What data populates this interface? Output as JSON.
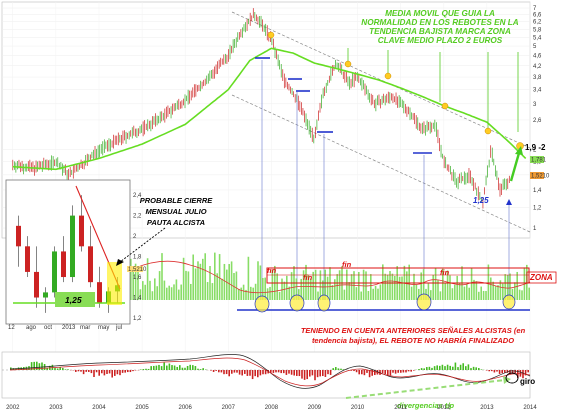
{
  "chart_data": {
    "type": "line",
    "x_axis": {
      "ticks": [
        "2002",
        "2003",
        "2004",
        "2005",
        "2006",
        "2007",
        "2008",
        "2009",
        "2010",
        "2011",
        "2012",
        "2013",
        "2014"
      ]
    },
    "y_axis": {
      "scale": "log",
      "ticks": [
        "7",
        "6,6",
        "6,2",
        "5,8",
        "5,4",
        "5",
        "4,6",
        "4,2",
        "3,8",
        "3,4",
        "3",
        "2,6",
        "2",
        "1,8",
        "1,6",
        "1,4",
        "1,2",
        "1"
      ],
      "range": [
        1,
        7
      ]
    },
    "price_tags": {
      "top": "1,781",
      "bottom": "1,5210"
    },
    "series": [
      {
        "kind": "price",
        "x": [
          2002.0,
          2002.5,
          2003.0,
          2003.3,
          2003.6,
          2004.0,
          2004.5,
          2005.0,
          2005.5,
          2006.0,
          2006.5,
          2007.0,
          2007.3,
          2007.6,
          2007.8,
          2008.0,
          2008.3,
          2008.6,
          2009.0,
          2009.2,
          2009.5,
          2009.8,
          2010.0,
          2010.4,
          2010.8,
          2011.2,
          2011.5,
          2011.8,
          2012.0,
          2012.3,
          2012.6,
          2012.9,
          2013.1,
          2013.3,
          2013.5
        ],
        "y": [
          1.75,
          1.7,
          1.8,
          1.6,
          1.75,
          2.0,
          2.2,
          2.4,
          2.7,
          3.1,
          3.7,
          4.6,
          5.7,
          6.6,
          6.0,
          5.3,
          3.7,
          3.1,
          2.2,
          3.3,
          4.3,
          3.6,
          3.8,
          3.0,
          3.2,
          2.8,
          2.4,
          2.5,
          1.8,
          1.5,
          1.6,
          1.25,
          2.0,
          1.4,
          1.52
        ]
      },
      {
        "kind": "moving-average",
        "x": [
          2002.0,
          2003.0,
          2004.0,
          2005.0,
          2006.0,
          2007.0,
          2007.5,
          2008.0,
          2008.5,
          2009.0,
          2009.5,
          2010.0,
          2010.5,
          2011.0,
          2011.5,
          2012.0,
          2012.5,
          2013.0,
          2013.5,
          2013.9
        ],
        "y": [
          1.72,
          1.68,
          1.85,
          2.1,
          2.5,
          3.4,
          4.4,
          4.9,
          4.7,
          4.3,
          4.1,
          3.9,
          3.7,
          3.45,
          3.2,
          2.95,
          2.75,
          2.55,
          2.15,
          1.85
        ]
      }
    ],
    "annotations": {
      "headline": [
        "MEDIA MOVIL QUE GUIA LA",
        "NORMALIDAD EN LOS REBOTES EN LA",
        "TENDENCIA BAJISTA MARCA ZONA",
        "CLAVE MEDIO PLAZO 2 EUROS"
      ],
      "target": "1,9 -2",
      "low_main": "1,25",
      "probable": [
        "PROBABLE CIERRE",
        "MENSUAL JULIO",
        "PAUTA ALCISTA"
      ],
      "low_inset": "1,25",
      "fin_labels": [
        "fin",
        "fin",
        "fin",
        "fin"
      ],
      "zona": "ZONA",
      "note": [
        "TENIENDO EN CUENTA ANTERIORES SEÑALES ALCISTAS (en",
        "tendencia bajista), EL REBOTE NO HABRÍA FINALIZADO"
      ],
      "giro": "giro",
      "divergencias": "divergencias t/p"
    },
    "inset": {
      "y_ticks": [
        "2,4",
        "2,2",
        "2",
        "1,8",
        "1,6",
        "1,4",
        "1,2"
      ],
      "x_ticks": [
        "12",
        "ago",
        "oct",
        "2013",
        "mar",
        "may",
        "jul"
      ],
      "tag": "1,5210"
    }
  },
  "colors": {
    "up": "#33aa22",
    "down": "#cc2222",
    "ma": "#66dd22",
    "annotation_green": "#55cc22",
    "blue": "#2233cc",
    "zone": "#dd1111",
    "volume": "#88dd66",
    "highlight": "#ffee44"
  }
}
